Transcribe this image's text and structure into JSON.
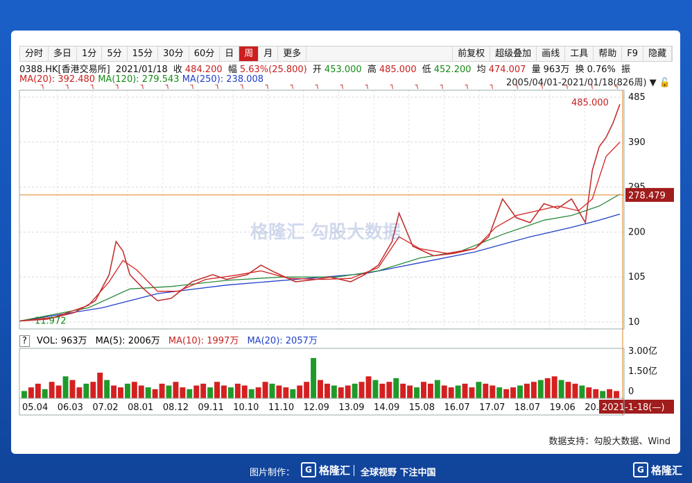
{
  "toolbar": {
    "periods": [
      "分时",
      "多日",
      "1分",
      "5分",
      "15分",
      "30分",
      "60分",
      "日",
      "周",
      "月",
      "更多"
    ],
    "active_period": "周",
    "tools": [
      "前复权",
      "超级叠加",
      "画线",
      "工具",
      "帮助",
      "F9",
      "隐藏"
    ]
  },
  "info": {
    "code": "0388.HK[香港交易所]",
    "date": "2021/01/18",
    "close_label": "收",
    "close": "484.200",
    "amp_label": "幅",
    "amp": "5.63%(25.800)",
    "open_label": "开",
    "open": "453.000",
    "high_label": "高",
    "high": "485.000",
    "low_label": "低",
    "low": "452.200",
    "avg_label": "均",
    "avg": "474.007",
    "vol_label": "量",
    "vol": "963万",
    "turn_label": "换",
    "turn": "0.76%",
    "zhen_label": "振"
  },
  "ma": {
    "ma20": "MA(20): 392.480",
    "ma120": "MA(120): 279.543",
    "ma250": "MA(250): 238.008"
  },
  "range": "2005/04/01-2021/01/18(826周)",
  "volume_legend": {
    "q": "?",
    "vol": "VOL: 963万",
    "ma5": "MA(5): 2006万",
    "ma10": "MA(10): 1997万",
    "ma20": "MA(20): 2057万"
  },
  "annotations": {
    "max_label": "485.000",
    "min_label": "11.972",
    "crosshair_value": "278.479",
    "crosshair_date": "2021-1-18(—)"
  },
  "footer": "数据支持：勾股大数据、Wind",
  "bottom": {
    "made": "图片制作：",
    "logo": "格隆汇",
    "slogan": "全球视野 下注中国",
    "logo2": "格隆汇"
  },
  "watermark": "格隆汇  勾股大数据",
  "colors": {
    "up": "#d42020",
    "down": "#1f9a2a",
    "ma20": "#d42020",
    "ma120": "#2a8a3a",
    "ma250": "#1f3fc8",
    "accent": "#cc1f1f"
  },
  "chart_data": {
    "type": "line",
    "x_ticks": [
      "05.04",
      "06.03",
      "07.02",
      "08.01",
      "08.12",
      "09.11",
      "10.10",
      "11.10",
      "12.09",
      "13.09",
      "14.09",
      "15.08",
      "16.07",
      "17.07",
      "18.07",
      "19.06",
      "20."
    ],
    "y_ticks": [
      10,
      105,
      200,
      295,
      390,
      485
    ],
    "ylim": [
      10,
      485
    ],
    "close": [
      [
        0,
        12
      ],
      [
        4,
        16
      ],
      [
        8,
        30
      ],
      [
        11,
        55
      ],
      [
        13,
        110
      ],
      [
        14,
        180
      ],
      [
        15,
        160
      ],
      [
        16,
        110
      ],
      [
        18,
        80
      ],
      [
        20,
        55
      ],
      [
        22,
        60
      ],
      [
        25,
        95
      ],
      [
        28,
        110
      ],
      [
        30,
        100
      ],
      [
        33,
        110
      ],
      [
        35,
        130
      ],
      [
        37,
        115
      ],
      [
        40,
        95
      ],
      [
        43,
        100
      ],
      [
        45,
        105
      ],
      [
        48,
        95
      ],
      [
        50,
        110
      ],
      [
        52,
        130
      ],
      [
        54,
        180
      ],
      [
        55,
        240
      ],
      [
        57,
        170
      ],
      [
        60,
        150
      ],
      [
        63,
        155
      ],
      [
        66,
        165
      ],
      [
        68,
        190
      ],
      [
        70,
        270
      ],
      [
        72,
        230
      ],
      [
        74,
        220
      ],
      [
        76,
        260
      ],
      [
        78,
        250
      ],
      [
        80,
        270
      ],
      [
        82,
        220
      ],
      [
        83,
        330
      ],
      [
        84,
        380
      ],
      [
        85,
        400
      ],
      [
        86,
        430
      ],
      [
        87,
        470
      ]
    ],
    "ma20": [
      [
        0,
        12
      ],
      [
        5,
        20
      ],
      [
        10,
        45
      ],
      [
        13,
        95
      ],
      [
        15,
        140
      ],
      [
        17,
        120
      ],
      [
        20,
        75
      ],
      [
        23,
        75
      ],
      [
        27,
        100
      ],
      [
        31,
        108
      ],
      [
        35,
        118
      ],
      [
        39,
        102
      ],
      [
        44,
        100
      ],
      [
        48,
        102
      ],
      [
        52,
        125
      ],
      [
        55,
        190
      ],
      [
        58,
        165
      ],
      [
        62,
        155
      ],
      [
        66,
        165
      ],
      [
        69,
        210
      ],
      [
        72,
        235
      ],
      [
        75,
        245
      ],
      [
        78,
        255
      ],
      [
        81,
        245
      ],
      [
        83,
        270
      ],
      [
        85,
        360
      ],
      [
        87,
        390
      ]
    ],
    "ma120": [
      [
        0,
        12
      ],
      [
        10,
        40
      ],
      [
        16,
        80
      ],
      [
        22,
        85
      ],
      [
        30,
        98
      ],
      [
        38,
        105
      ],
      [
        46,
        105
      ],
      [
        52,
        118
      ],
      [
        58,
        145
      ],
      [
        64,
        160
      ],
      [
        70,
        195
      ],
      [
        76,
        225
      ],
      [
        80,
        235
      ],
      [
        84,
        255
      ],
      [
        87,
        280
      ]
    ],
    "ma250": [
      [
        0,
        12
      ],
      [
        12,
        40
      ],
      [
        20,
        70
      ],
      [
        30,
        88
      ],
      [
        40,
        100
      ],
      [
        50,
        112
      ],
      [
        58,
        135
      ],
      [
        66,
        158
      ],
      [
        74,
        190
      ],
      [
        80,
        210
      ],
      [
        84,
        225
      ],
      [
        87,
        238
      ]
    ],
    "volume": [
      4,
      6,
      8,
      5,
      9,
      7,
      12,
      10,
      6,
      8,
      9,
      14,
      10,
      7,
      6,
      8,
      9,
      7,
      6,
      5,
      8,
      7,
      9,
      6,
      5,
      7,
      8,
      6,
      9,
      7,
      6,
      8,
      7,
      5,
      6,
      9,
      8,
      7,
      6,
      5,
      7,
      9,
      22,
      10,
      8,
      7,
      6,
      7,
      8,
      9,
      12,
      10,
      8,
      9,
      11,
      8,
      7,
      6,
      9,
      8,
      10,
      7,
      6,
      7,
      8,
      6,
      9,
      8,
      7,
      6,
      5,
      6,
      7,
      8,
      9,
      10,
      11,
      12,
      10,
      9,
      8,
      7,
      6,
      5,
      4,
      5,
      4
    ]
  }
}
